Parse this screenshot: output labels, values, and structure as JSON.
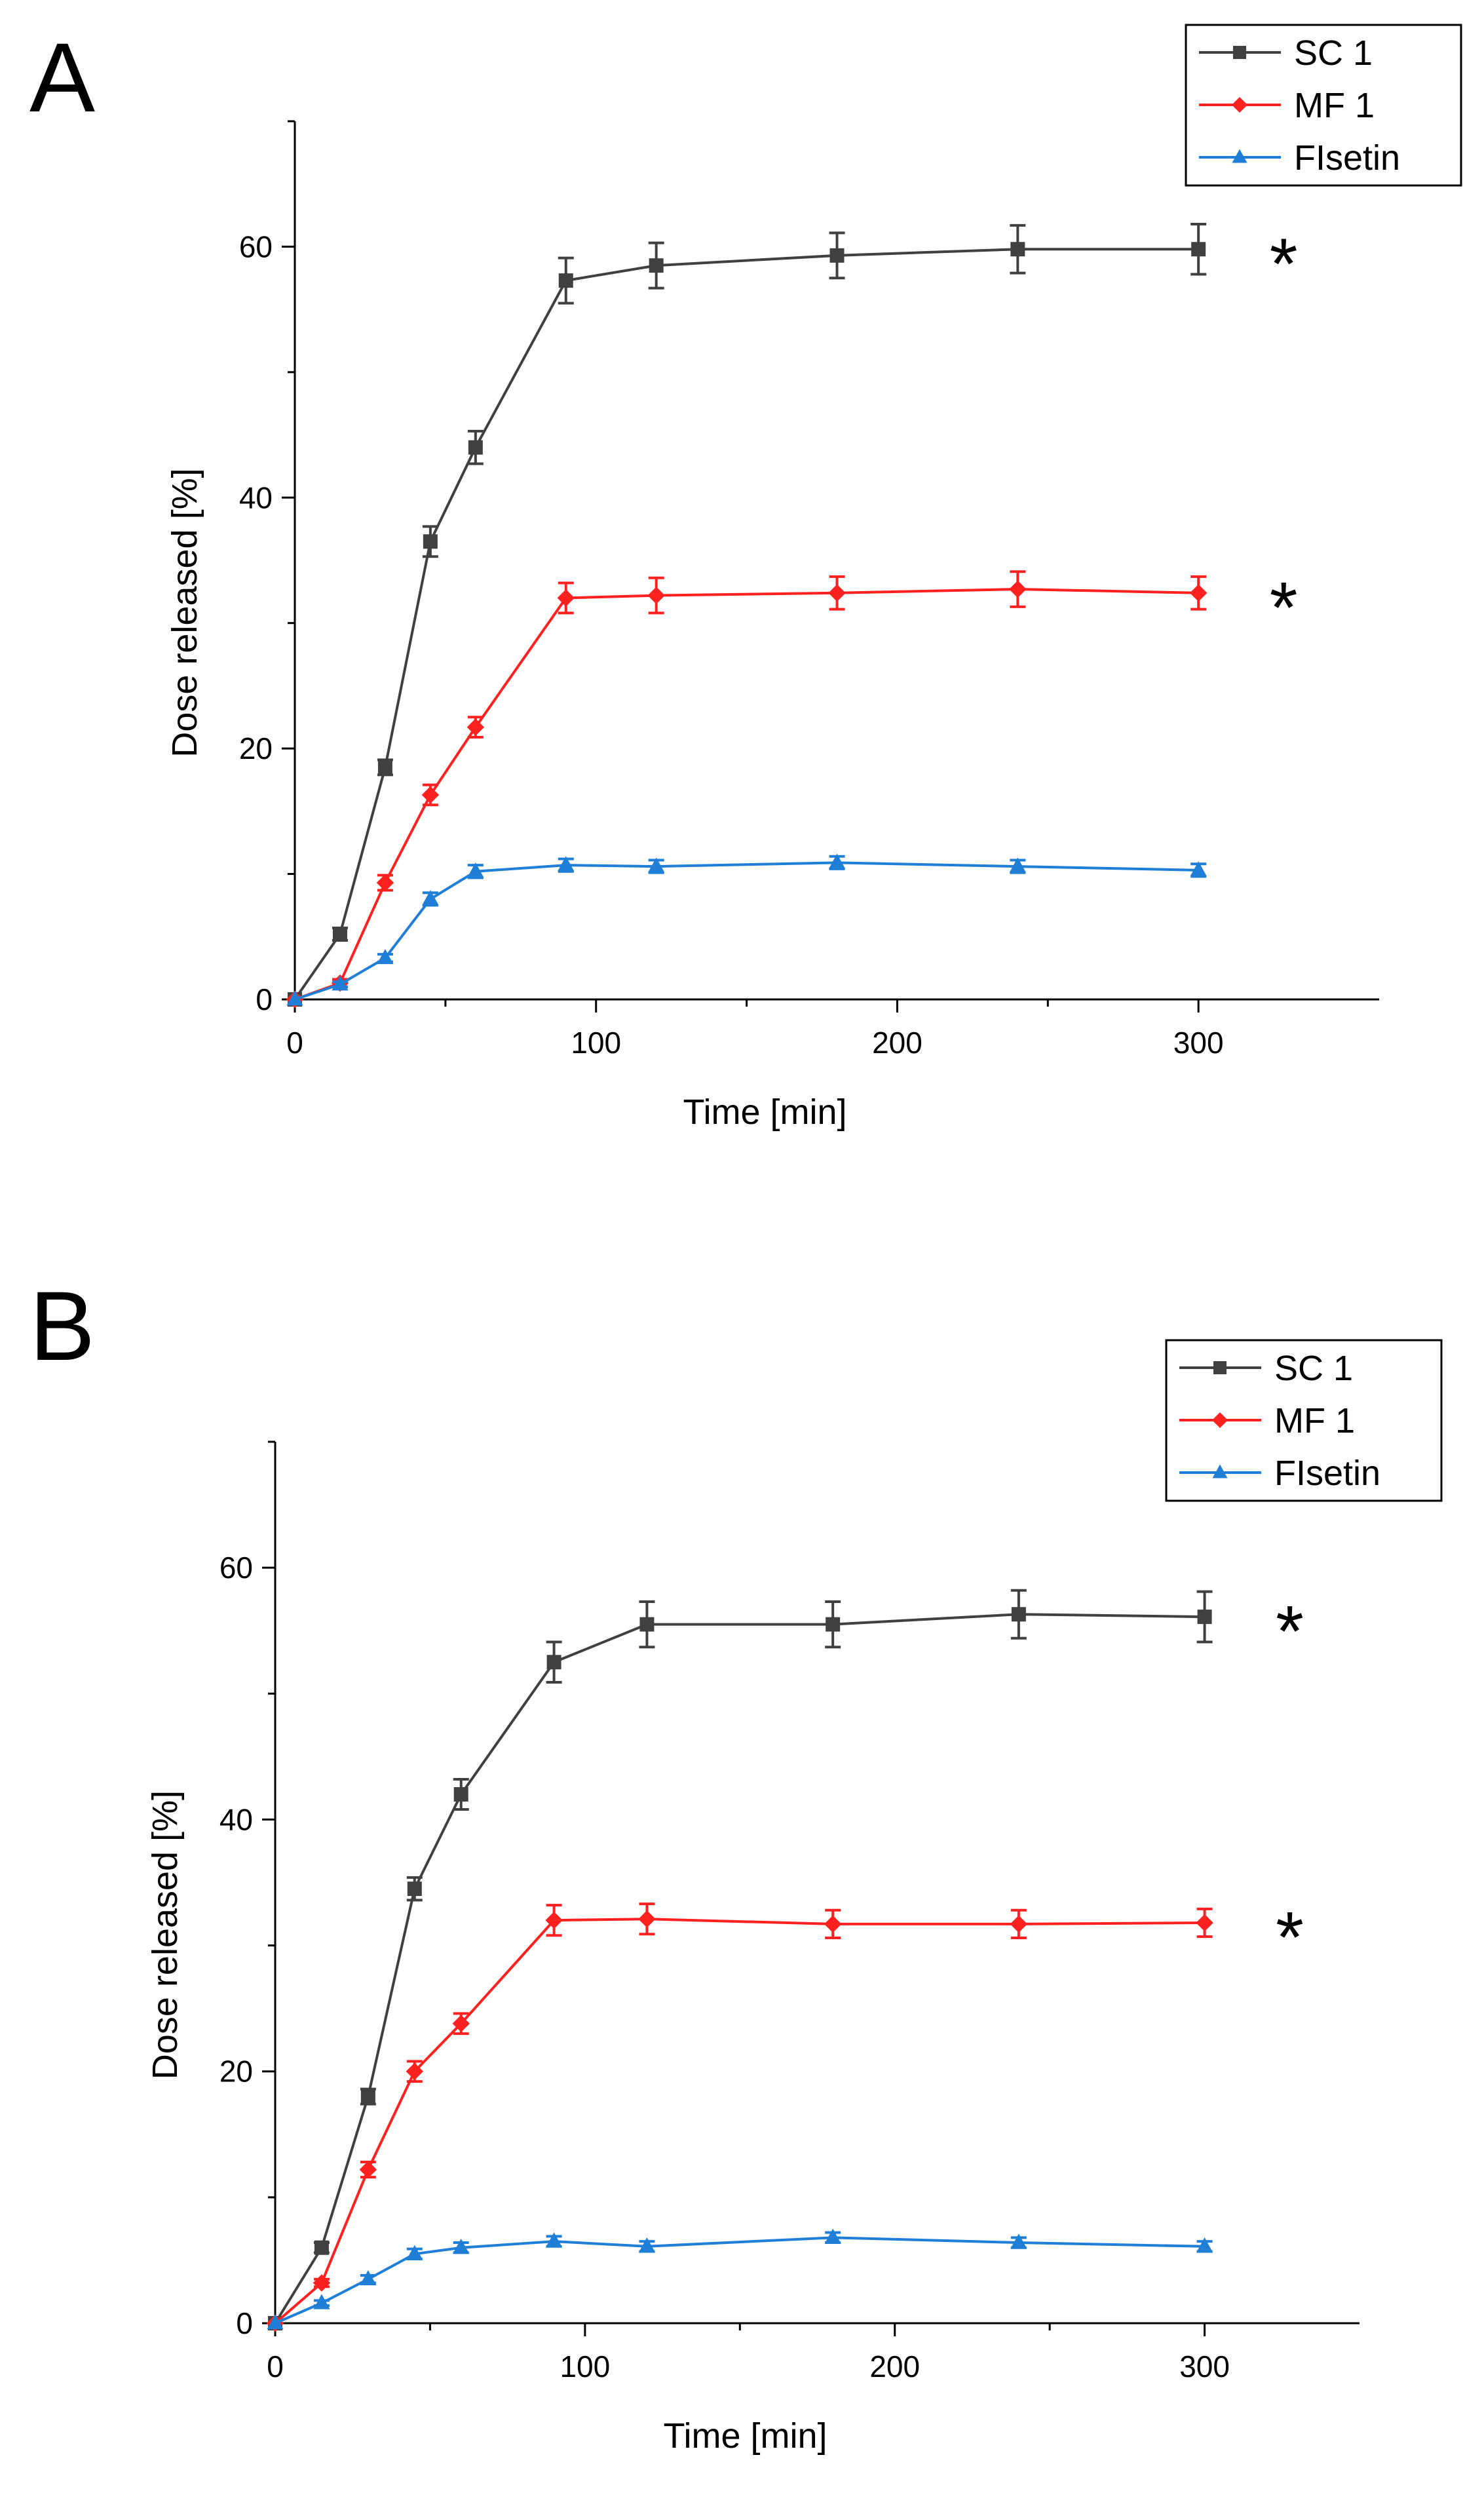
{
  "chart_data": [
    {
      "panel": "A",
      "type": "line",
      "xlabel": "Time [min]",
      "ylabel": "Dose released [%]",
      "xlim": [
        0,
        360
      ],
      "ylim": [
        0,
        70
      ],
      "xticks": [
        0,
        100,
        200,
        300
      ],
      "yticks": [
        0,
        20,
        40,
        60
      ],
      "legend_position": "top-right",
      "series": [
        {
          "name": "SC 1",
          "color": "#404040",
          "marker": "square",
          "x": [
            0,
            15,
            30,
            45,
            60,
            90,
            120,
            180,
            240,
            300
          ],
          "y": [
            0,
            5.2,
            18.5,
            36.5,
            44,
            57.3,
            58.5,
            59.3,
            59.8,
            59.8
          ],
          "err": [
            0,
            0.5,
            0.6,
            1.2,
            1.3,
            1.8,
            1.8,
            1.8,
            1.9,
            2.0
          ],
          "annotation": "*"
        },
        {
          "name": "MF 1",
          "color": "#ff2020",
          "marker": "diamond",
          "x": [
            0,
            15,
            30,
            45,
            60,
            90,
            120,
            180,
            240,
            300
          ],
          "y": [
            0,
            1.3,
            9.3,
            16.3,
            21.7,
            32.0,
            32.2,
            32.4,
            32.7,
            32.4
          ],
          "err": [
            0,
            0.3,
            0.6,
            0.8,
            0.8,
            1.2,
            1.4,
            1.3,
            1.4,
            1.3
          ],
          "annotation": "*"
        },
        {
          "name": "FIsetin",
          "color": "#1f7fd6",
          "marker": "triangle",
          "x": [
            0,
            15,
            30,
            45,
            60,
            90,
            120,
            180,
            240,
            300
          ],
          "y": [
            0,
            1.2,
            3.3,
            8.0,
            10.2,
            10.7,
            10.6,
            10.9,
            10.6,
            10.3
          ],
          "err": [
            0,
            0.2,
            0.3,
            0.5,
            0.5,
            0.5,
            0.5,
            0.5,
            0.5,
            0.5
          ]
        }
      ]
    },
    {
      "panel": "B",
      "type": "line",
      "xlabel": "Time [min]",
      "ylabel": "Dose released [%]",
      "xlim": [
        0,
        350
      ],
      "ylim": [
        0,
        70
      ],
      "xticks": [
        0,
        100,
        200,
        300
      ],
      "yticks": [
        0,
        20,
        40,
        60
      ],
      "legend_position": "top-right",
      "series": [
        {
          "name": "SC 1",
          "color": "#404040",
          "marker": "square",
          "x": [
            0,
            15,
            30,
            45,
            60,
            90,
            120,
            180,
            240,
            300
          ],
          "y": [
            0,
            6.0,
            18.0,
            34.5,
            42.0,
            52.5,
            55.5,
            55.5,
            56.3,
            56.1
          ],
          "err": [
            0,
            0.4,
            0.6,
            0.9,
            1.2,
            1.6,
            1.8,
            1.8,
            1.9,
            2.0
          ],
          "annotation": "*"
        },
        {
          "name": "MF 1",
          "color": "#ff2020",
          "marker": "diamond",
          "x": [
            0,
            15,
            30,
            45,
            60,
            90,
            120,
            180,
            240,
            300
          ],
          "y": [
            0,
            3.2,
            12.2,
            20.0,
            23.8,
            32.0,
            32.1,
            31.7,
            31.7,
            31.8
          ],
          "err": [
            0,
            0.3,
            0.6,
            0.8,
            0.8,
            1.2,
            1.2,
            1.1,
            1.1,
            1.1
          ],
          "annotation": "*"
        },
        {
          "name": "FIsetin",
          "color": "#1f7fd6",
          "marker": "triangle",
          "x": [
            0,
            15,
            30,
            45,
            60,
            90,
            120,
            180,
            240,
            300
          ],
          "y": [
            0,
            1.6,
            3.5,
            5.5,
            6.0,
            6.5,
            6.1,
            6.8,
            6.4,
            6.1
          ],
          "err": [
            0,
            0.2,
            0.3,
            0.4,
            0.4,
            0.4,
            0.4,
            0.4,
            0.4,
            0.4
          ]
        }
      ]
    }
  ]
}
